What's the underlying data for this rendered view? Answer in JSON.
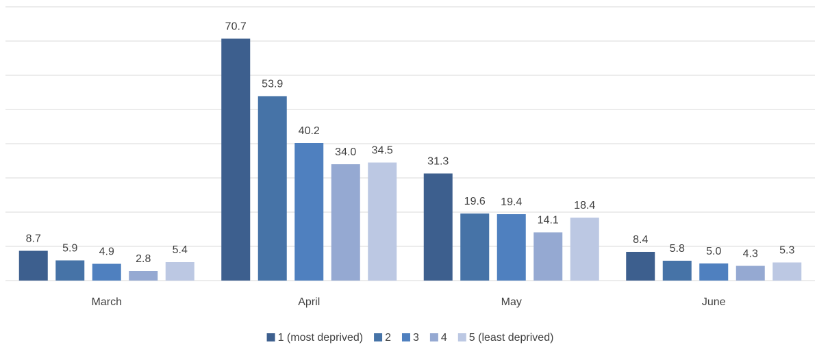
{
  "chart_data": {
    "type": "bar",
    "categories": [
      "March",
      "April",
      "May",
      "June"
    ],
    "series": [
      {
        "name": "1 (most deprived)",
        "color": "#3d5f8e",
        "values": [
          8.7,
          70.7,
          31.3,
          8.4
        ],
        "value_labels": [
          "8.7",
          "70.7",
          "31.3",
          "8.4"
        ]
      },
      {
        "name": "2",
        "color": "#4673a7",
        "values": [
          5.9,
          53.9,
          19.6,
          5.8
        ],
        "value_labels": [
          "5.9",
          "53.9",
          "19.6",
          "5.8"
        ]
      },
      {
        "name": "3",
        "color": "#4f80bf",
        "values": [
          4.9,
          40.2,
          19.4,
          5.0
        ],
        "value_labels": [
          "4.9",
          "40.2",
          "19.4",
          "5.0"
        ]
      },
      {
        "name": "4",
        "color": "#95a9d2",
        "values": [
          2.8,
          34.0,
          14.1,
          4.3
        ],
        "value_labels": [
          "2.8",
          "34.0",
          "14.1",
          "4.3"
        ]
      },
      {
        "name": "5 (least deprived)",
        "color": "#bcc8e3",
        "values": [
          5.4,
          34.5,
          18.4,
          5.3
        ],
        "value_labels": [
          "5.4",
          "34.5",
          "18.4",
          "5.3"
        ]
      }
    ],
    "ylim": [
      0,
      80
    ],
    "yticks": [
      0,
      10,
      20,
      30,
      40,
      50,
      60,
      70,
      80
    ],
    "grid": true,
    "legend": "bottom"
  }
}
